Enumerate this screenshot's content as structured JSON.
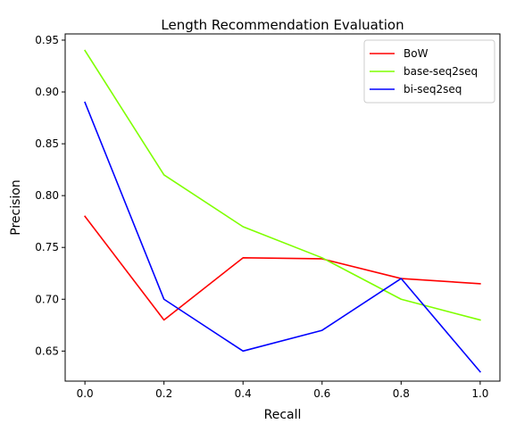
{
  "chart_data": {
    "type": "line",
    "title": "Length Recommendation Evaluation",
    "xlabel": "Recall",
    "ylabel": "Precision",
    "xlim": [
      -0.05,
      1.05
    ],
    "ylim": [
      0.621,
      0.956
    ],
    "x_ticks": [
      "0.0",
      "0.2",
      "0.4",
      "0.6",
      "0.8",
      "1.0"
    ],
    "y_ticks": [
      "0.65",
      "0.70",
      "0.75",
      "0.80",
      "0.85",
      "0.90",
      "0.95"
    ],
    "grid": false,
    "legend_position": "top-right",
    "x": [
      0.0,
      0.2,
      0.4,
      0.6,
      0.8,
      1.0
    ],
    "series": [
      {
        "name": "BoW",
        "color": "#ff0000",
        "values": [
          0.78,
          0.68,
          0.74,
          0.739,
          0.72,
          0.715
        ]
      },
      {
        "name": "base-seq2seq",
        "color": "#7fff00",
        "values": [
          0.94,
          0.82,
          0.77,
          0.74,
          0.7,
          0.68
        ]
      },
      {
        "name": "bi-seq2seq",
        "color": "#0000ff",
        "values": [
          0.89,
          0.7,
          0.65,
          0.67,
          0.72,
          0.63
        ]
      }
    ]
  }
}
